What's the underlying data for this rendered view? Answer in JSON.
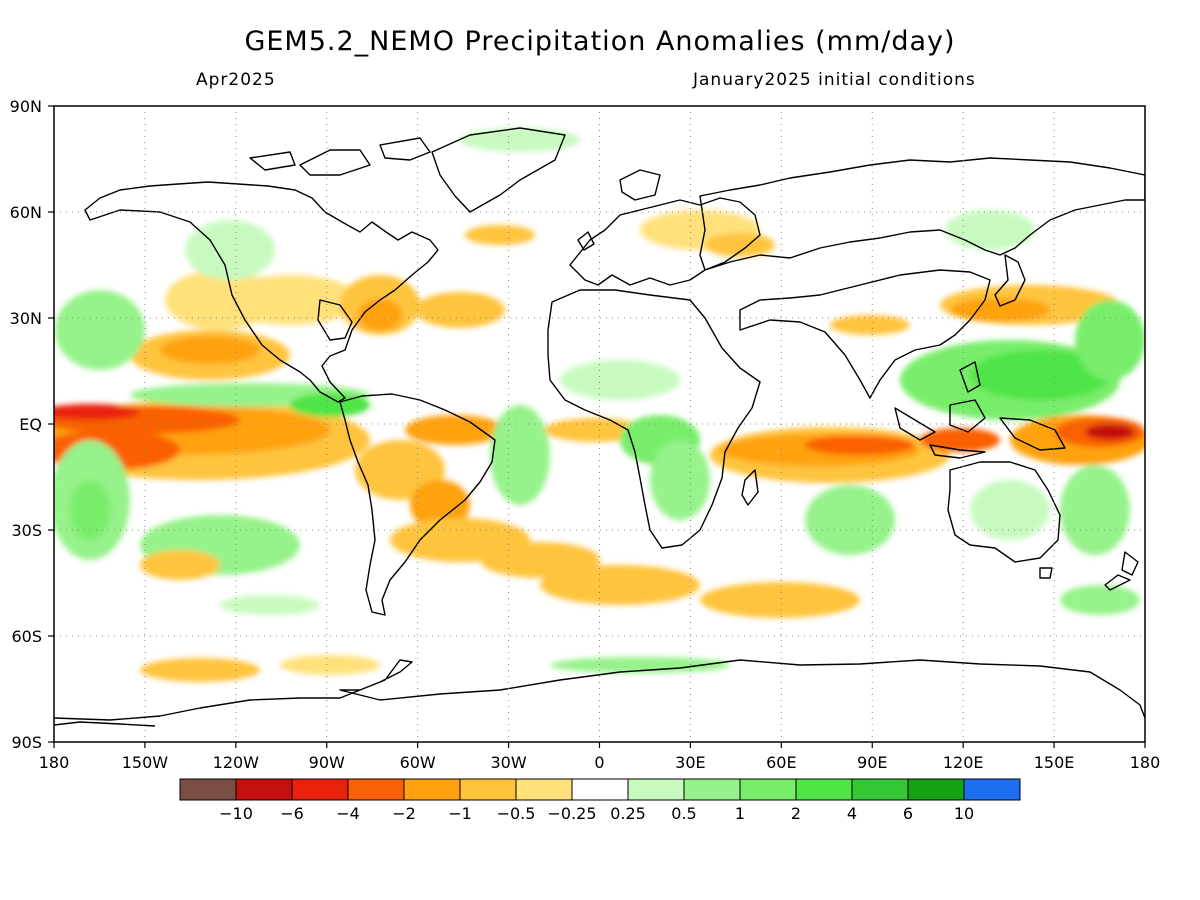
{
  "header": {
    "title": "GEM5.2_NEMO Precipitation Anomalies (mm/day)",
    "valid_month": "Apr2025",
    "init": "January2025 initial conditions"
  },
  "chart_data": {
    "type": "heatmap",
    "map_type": "global equirectangular precipitation anomaly",
    "lon_range": [
      -180,
      180
    ],
    "lat_range": [
      -90,
      90
    ],
    "lat_ticks": [
      "90N",
      "60N",
      "30N",
      "EQ",
      "30S",
      "60S",
      "90S"
    ],
    "lon_ticks": [
      "180",
      "150W",
      "120W",
      "90W",
      "60W",
      "30W",
      "0",
      "30E",
      "60E",
      "90E",
      "120E",
      "150E",
      "180"
    ],
    "grid": true,
    "colorbar": {
      "colors": [
        "#7b4e44",
        "#c40f0f",
        "#e8220c",
        "#fa6005",
        "#ffa20d",
        "#ffc43c",
        "#ffe17c",
        "#ffffff",
        "#c8fac0",
        "#96f28a",
        "#78ed6a",
        "#50e446",
        "#36c736",
        "#14a114",
        "#1e6ef0"
      ],
      "labels": [
        "−10",
        "−6",
        "−4",
        "−2",
        "−1",
        "−0.5",
        "−0.25",
        "0.25",
        "0.5",
        "1",
        "2",
        "4",
        "6",
        "10"
      ]
    },
    "anomaly_regions": [
      {
        "region": "Equatorial central/east Pacific",
        "sign": "negative",
        "level": "-2 to -6"
      },
      {
        "region": "Equatorial Indian Ocean",
        "sign": "negative",
        "level": "-1 to -4"
      },
      {
        "region": "Western Pacific warm pool",
        "sign": "negative",
        "level": "-2 to -6"
      },
      {
        "region": "Maritime continent / Philippines",
        "sign": "positive",
        "level": "1 to 4"
      },
      {
        "region": "South Atlantic convergence band",
        "sign": "negative",
        "level": "-0.5 to -2"
      },
      {
        "region": "North Pacific subtropics",
        "sign": "negative",
        "level": "-0.5 to -2"
      },
      {
        "region": "Tropical South America / Africa",
        "sign": "positive",
        "level": "0.5 to 2"
      }
    ]
  }
}
